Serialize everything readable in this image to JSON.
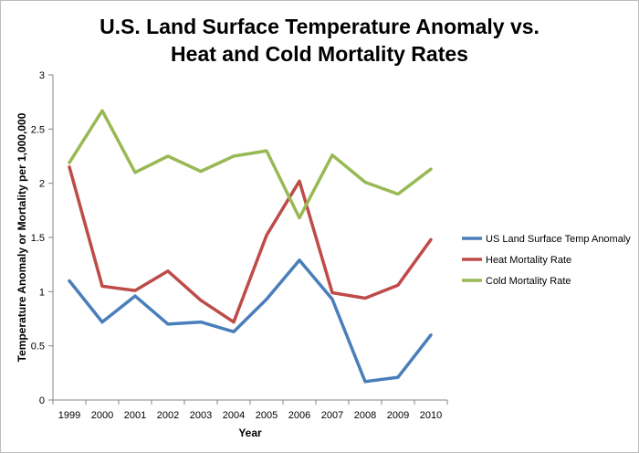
{
  "chart_data": {
    "type": "line",
    "title_line1": "U.S. Land Surface Temperature Anomaly vs.",
    "title_line2": "Heat and Cold Mortality Rates",
    "xlabel": "Year",
    "ylabel": "Temperature Anomaly or Mortality per 1,000,000",
    "categories": [
      "1999",
      "2000",
      "2001",
      "2002",
      "2003",
      "2004",
      "2005",
      "2006",
      "2007",
      "2008",
      "2009",
      "2010"
    ],
    "ylim": [
      0,
      3
    ],
    "yticks": [
      "0",
      "0.5",
      "1",
      "1.5",
      "2",
      "2.5",
      "3"
    ],
    "legend_position": "right",
    "grid": false,
    "series": [
      {
        "name": "US Land Surface Temp Anomaly",
        "color": "#4a7ebb",
        "values": [
          1.1,
          0.72,
          0.96,
          0.7,
          0.72,
          0.63,
          0.93,
          1.29,
          0.93,
          0.17,
          0.21,
          0.6
        ]
      },
      {
        "name": "Heat Mortality Rate",
        "color": "#be4b48",
        "values": [
          2.15,
          1.05,
          1.01,
          1.19,
          0.92,
          0.72,
          1.52,
          2.02,
          0.99,
          0.94,
          1.06,
          1.48
        ]
      },
      {
        "name": "Cold Mortality Rate",
        "color": "#98b954",
        "values": [
          2.19,
          2.67,
          2.1,
          2.25,
          2.11,
          2.25,
          2.3,
          1.68,
          2.26,
          2.01,
          1.9,
          2.13
        ]
      }
    ]
  }
}
